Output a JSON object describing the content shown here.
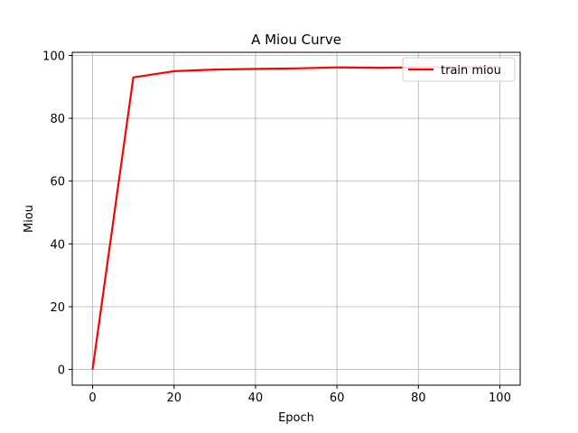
{
  "chart_data": {
    "type": "line",
    "title": "A Miou Curve",
    "xlabel": "Epoch",
    "ylabel": "Miou",
    "xlim": [
      -5,
      105
    ],
    "ylim": [
      -5,
      101
    ],
    "xticks": [
      0,
      20,
      40,
      60,
      80,
      100
    ],
    "yticks": [
      0,
      20,
      40,
      60,
      80,
      100
    ],
    "grid": true,
    "legend_position": "upper-right",
    "series": [
      {
        "name": "train miou",
        "color": "#ff0000",
        "x": [
          0,
          10,
          20,
          30,
          40,
          50,
          60,
          70,
          80,
          90,
          100
        ],
        "y": [
          0,
          93.0,
          95.0,
          95.5,
          95.7,
          95.9,
          96.2,
          96.1,
          96.2,
          96.3,
          96.3
        ]
      }
    ]
  }
}
